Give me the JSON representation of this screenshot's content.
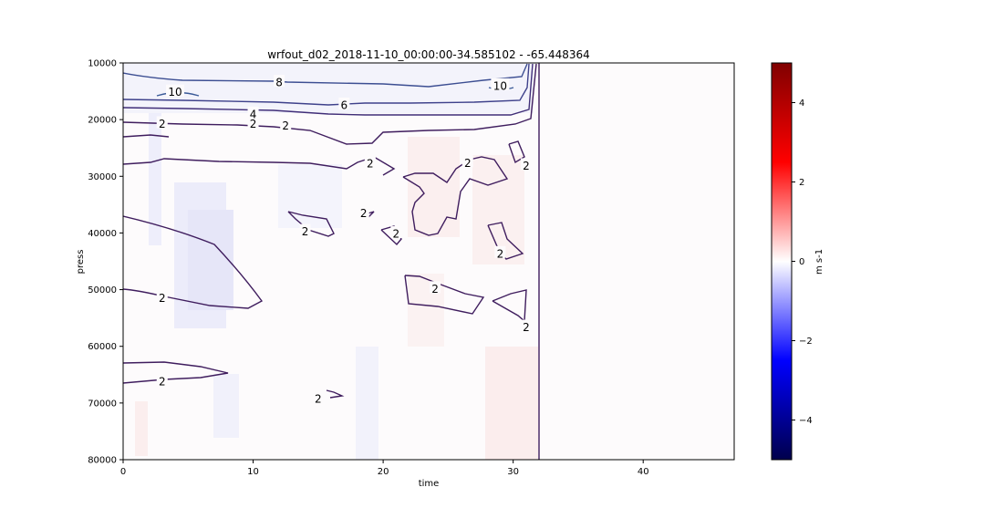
{
  "chart_data": {
    "type": "heatmap",
    "title": "wrfout_d02_2018-11-10_00:00:00-34.585102 - -65.448364",
    "xlabel": "time",
    "ylabel": "press",
    "xlim": [
      0,
      47
    ],
    "ylim": [
      80000,
      10000
    ],
    "y_inverted": true,
    "x_ticks": [
      "0",
      "10",
      "20",
      "30",
      "40"
    ],
    "y_ticks": [
      "10000",
      "20000",
      "30000",
      "40000",
      "50000",
      "60000",
      "70000",
      "80000"
    ],
    "grid": false,
    "colorbar": {
      "label": "m s-1",
      "vmin": -5,
      "vmax": 5,
      "colormap": "seismic",
      "ticks": [
        "4",
        "2",
        "0",
        "−2",
        "−4"
      ],
      "colors": [
        "#00004c",
        "#0000ff",
        "#ffffff",
        "#ff0000",
        "#800000"
      ]
    },
    "contour_levels": [
      "2",
      "4",
      "6",
      "8",
      "10"
    ],
    "contour_labels": [
      {
        "text": "2",
        "x": 3,
        "y": 20700
      },
      {
        "text": "2",
        "x": 10,
        "y": 20700
      },
      {
        "text": "2",
        "x": 12.5,
        "y": 21000
      },
      {
        "text": "4",
        "x": 10,
        "y": 19000
      },
      {
        "text": "6",
        "x": 17,
        "y": 17400
      },
      {
        "text": "8",
        "x": 12,
        "y": 13400
      },
      {
        "text": "10",
        "x": 4,
        "y": 15100
      },
      {
        "text": "10",
        "x": 29,
        "y": 14000
      },
      {
        "text": "2",
        "x": 19,
        "y": 27700
      },
      {
        "text": "2",
        "x": 26.5,
        "y": 27600
      },
      {
        "text": "2",
        "x": 31,
        "y": 28100
      },
      {
        "text": "2",
        "x": 18.5,
        "y": 36500
      },
      {
        "text": "2",
        "x": 14,
        "y": 39700
      },
      {
        "text": "2",
        "x": 21,
        "y": 40100
      },
      {
        "text": "2",
        "x": 29,
        "y": 43600
      },
      {
        "text": "2",
        "x": 24,
        "y": 49800
      },
      {
        "text": "2",
        "x": 3,
        "y": 51400
      },
      {
        "text": "2",
        "x": 31,
        "y": 56600
      },
      {
        "text": "2",
        "x": 3,
        "y": 66200
      },
      {
        "text": "2",
        "x": 15,
        "y": 69200
      }
    ]
  }
}
